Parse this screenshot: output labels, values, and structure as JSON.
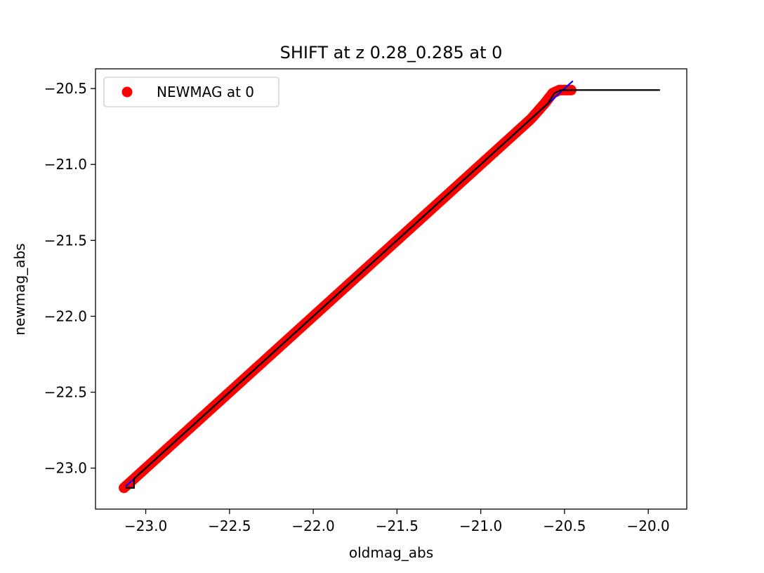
{
  "chart_data": {
    "type": "scatter",
    "title": "SHIFT at z 0.28_0.285 at 0",
    "xlabel": "oldmag_abs",
    "ylabel": "newmag_abs",
    "xlim": [
      -23.3,
      -19.77
    ],
    "ylim": [
      -23.27,
      -20.37
    ],
    "xticks": [
      {
        "value": -23.0,
        "label": "−23.0"
      },
      {
        "value": -22.5,
        "label": "−22.5"
      },
      {
        "value": -22.0,
        "label": "−22.0"
      },
      {
        "value": -21.5,
        "label": "−21.5"
      },
      {
        "value": -21.0,
        "label": "−21.0"
      },
      {
        "value": -20.5,
        "label": "−20.5"
      },
      {
        "value": -20.0,
        "label": "−20.0"
      }
    ],
    "yticks": [
      {
        "value": -23.0,
        "label": "−23.0"
      },
      {
        "value": -22.5,
        "label": "−22.5"
      },
      {
        "value": -22.0,
        "label": "−22.0"
      },
      {
        "value": -21.5,
        "label": "−21.5"
      },
      {
        "value": -21.0,
        "label": "−21.0"
      },
      {
        "value": -20.5,
        "label": "−20.5"
      }
    ],
    "legend": {
      "placement": "upper-left",
      "entries": [
        "NEWMAG at 0"
      ]
    },
    "grid": false,
    "series": [
      {
        "name": "NEWMAG at 0",
        "kind": "scatter",
        "color": "#ff0000",
        "points": [
          [
            -23.13,
            -23.13
          ],
          [
            -23.07,
            -23.07
          ],
          [
            -23.0,
            -23.0
          ],
          [
            -22.9,
            -22.9
          ],
          [
            -22.8,
            -22.8
          ],
          [
            -22.7,
            -22.7
          ],
          [
            -22.6,
            -22.6
          ],
          [
            -22.5,
            -22.5
          ],
          [
            -22.4,
            -22.4
          ],
          [
            -22.3,
            -22.3
          ],
          [
            -22.2,
            -22.2
          ],
          [
            -22.1,
            -22.1
          ],
          [
            -22.0,
            -22.0
          ],
          [
            -21.9,
            -21.9
          ],
          [
            -21.8,
            -21.8
          ],
          [
            -21.7,
            -21.7
          ],
          [
            -21.6,
            -21.6
          ],
          [
            -21.5,
            -21.5
          ],
          [
            -21.4,
            -21.4
          ],
          [
            -21.3,
            -21.3
          ],
          [
            -21.2,
            -21.2
          ],
          [
            -21.1,
            -21.1
          ],
          [
            -21.0,
            -21.0
          ],
          [
            -20.9,
            -20.9
          ],
          [
            -20.8,
            -20.8
          ],
          [
            -20.7,
            -20.7
          ],
          [
            -20.62,
            -20.6
          ],
          [
            -20.57,
            -20.53
          ],
          [
            -20.53,
            -20.51
          ],
          [
            -20.5,
            -20.51
          ],
          [
            -20.46,
            -20.51
          ]
        ]
      },
      {
        "name": "",
        "kind": "line",
        "color": "#0000ff",
        "points": [
          [
            -23.12,
            -23.12
          ],
          [
            -20.45,
            -20.45
          ]
        ]
      },
      {
        "name": "",
        "kind": "line",
        "color": "#000000",
        "points": [
          [
            -23.12,
            -23.13
          ],
          [
            -23.07,
            -23.13
          ],
          [
            -23.07,
            -23.07
          ],
          [
            -20.6,
            -20.6
          ],
          [
            -20.56,
            -20.53
          ],
          [
            -20.52,
            -20.51
          ],
          [
            -19.93,
            -20.51
          ]
        ]
      }
    ]
  }
}
